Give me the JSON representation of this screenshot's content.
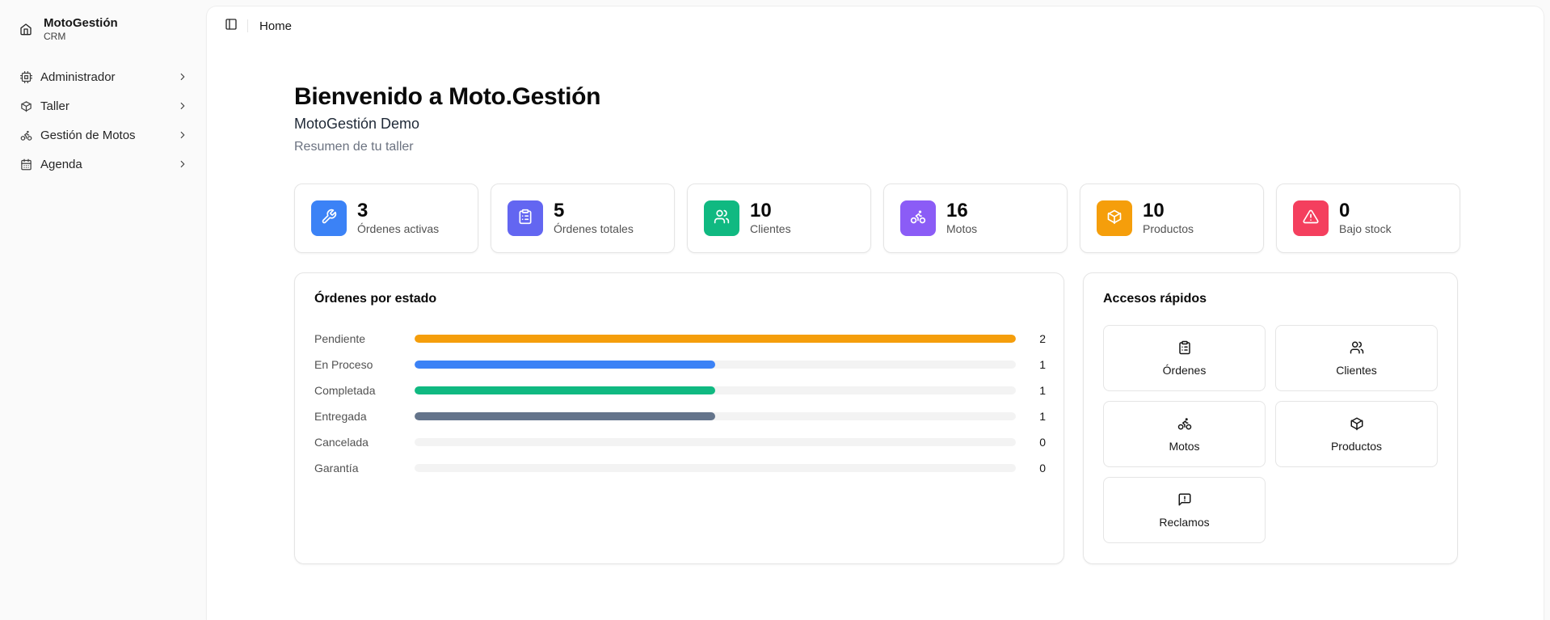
{
  "brand": {
    "name": "MotoGestión",
    "sub": "CRM"
  },
  "sidebar": {
    "items": [
      {
        "label": "Administrador",
        "icon": "cpu-icon"
      },
      {
        "label": "Taller",
        "icon": "box-icon"
      },
      {
        "label": "Gestión de Motos",
        "icon": "bike-icon"
      },
      {
        "label": "Agenda",
        "icon": "calendar-icon"
      }
    ]
  },
  "topbar": {
    "breadcrumb": "Home"
  },
  "header": {
    "title": "Bienvenido a Moto.Gestión",
    "subtitle": "MotoGestión Demo",
    "description": "Resumen de tu taller"
  },
  "stats": [
    {
      "value": "3",
      "label": "Órdenes activas",
      "icon": "wrench-icon",
      "color": "#3b82f6"
    },
    {
      "value": "5",
      "label": "Órdenes totales",
      "icon": "clipboard-icon",
      "color": "#6366f1"
    },
    {
      "value": "10",
      "label": "Clientes",
      "icon": "users-icon",
      "color": "#10b981"
    },
    {
      "value": "16",
      "label": "Motos",
      "icon": "bike-icon",
      "color": "#8b5cf6"
    },
    {
      "value": "10",
      "label": "Productos",
      "icon": "box-icon",
      "color": "#f59e0b"
    },
    {
      "value": "0",
      "label": "Bajo stock",
      "icon": "alert-icon",
      "color": "#f43f5e"
    }
  ],
  "orders_panel": {
    "title": "Órdenes por estado",
    "max": 2,
    "rows": [
      {
        "label": "Pendiente",
        "count": 2,
        "color": "#f59e0b"
      },
      {
        "label": "En Proceso",
        "count": 1,
        "color": "#3b82f6"
      },
      {
        "label": "Completada",
        "count": 1,
        "color": "#10b981"
      },
      {
        "label": "Entregada",
        "count": 1,
        "color": "#64748b"
      },
      {
        "label": "Cancelada",
        "count": 0,
        "color": "#ef4444"
      },
      {
        "label": "Garantía",
        "count": 0,
        "color": "#a855f7"
      }
    ]
  },
  "quick_panel": {
    "title": "Accesos rápidos",
    "items": [
      {
        "label": "Órdenes",
        "icon": "clipboard-icon"
      },
      {
        "label": "Clientes",
        "icon": "users-icon"
      },
      {
        "label": "Motos",
        "icon": "bike-icon"
      },
      {
        "label": "Productos",
        "icon": "box-icon"
      },
      {
        "label": "Reclamos",
        "icon": "message-alert-icon"
      }
    ]
  }
}
